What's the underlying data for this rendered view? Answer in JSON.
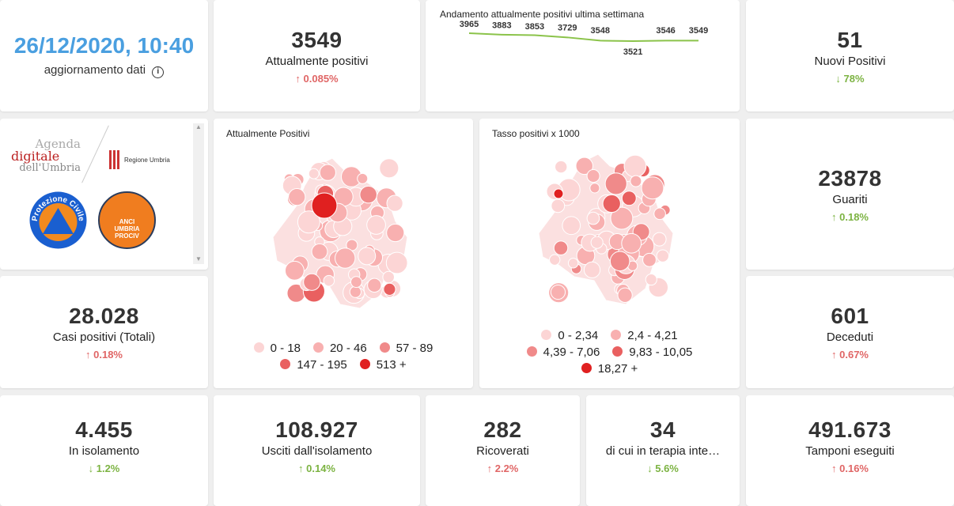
{
  "header": {
    "date": "26/12/2020, 10:40",
    "date_label": "aggiornamento dati",
    "info_icon": "info-icon"
  },
  "attualmente_positivi": {
    "value": "3549",
    "label": "Attualmente positivi",
    "delta": "0.085%",
    "dir": "up"
  },
  "trend": {
    "title": "Andamento attualmente positivi ultima settimana",
    "values": [
      3965,
      3883,
      3853,
      3729,
      3548,
      3521,
      3546,
      3549
    ],
    "labels": [
      "3965",
      "3883",
      "3853",
      "3729",
      "3548",
      "3521",
      "3546",
      "3549"
    ],
    "color": "#8bc34a"
  },
  "nuovi_positivi": {
    "value": "51",
    "label": "Nuovi Positivi",
    "delta": "78%",
    "dir": "down"
  },
  "logos": {
    "agenda1": "Agenda",
    "agenda2": "digitale",
    "agenda3": "dell'Umbria",
    "regione": "Regione Umbria",
    "protezione": "Protezione Civile",
    "anci": "ANCI UMBRIA PROCIV"
  },
  "map1": {
    "title": "Attualmente Positivi",
    "legend": [
      {
        "label": "0 - 18",
        "color": "#fcd5d5"
      },
      {
        "label": "20 - 46",
        "color": "#f8b0b0"
      },
      {
        "label": "57 - 89",
        "color": "#f08a8a"
      },
      {
        "label": "147 - 195",
        "color": "#e96060"
      },
      {
        "label": "513 +",
        "color": "#e02020"
      }
    ]
  },
  "map2": {
    "title": "Tasso positivi x 1000",
    "legend": [
      {
        "label": "0 - 2,34",
        "color": "#fcd5d5"
      },
      {
        "label": "2,4 - 4,21",
        "color": "#f8b0b0"
      },
      {
        "label": "4,39 - 7,06",
        "color": "#f08a8a"
      },
      {
        "label": "9,83 - 10,05",
        "color": "#e96060"
      },
      {
        "label": "18,27 +",
        "color": "#e02020"
      }
    ]
  },
  "guariti": {
    "value": "23878",
    "label": "Guariti",
    "delta": "0.18%",
    "dir": "up-green"
  },
  "casi": {
    "value": "28.028",
    "label": "Casi positivi (Totali)",
    "delta": "0.18%",
    "dir": "up"
  },
  "deceduti": {
    "value": "601",
    "label": "Deceduti",
    "delta": "0.67%",
    "dir": "up"
  },
  "bottom": [
    {
      "value": "4.455",
      "label": "In isolamento",
      "delta": "1.2%",
      "dir": "down"
    },
    {
      "value": "108.927",
      "label": "Usciti dall'isolamento",
      "delta": "0.14%",
      "dir": "up-green"
    },
    {
      "value": "282",
      "label": "Ricoverati",
      "delta": "2.2%",
      "dir": "up"
    },
    {
      "value": "34",
      "label": "di cui in terapia inte…",
      "delta": "5.6%",
      "dir": "down"
    },
    {
      "value": "491.673",
      "label": "Tamponi eseguiti",
      "delta": "0.16%",
      "dir": "up"
    }
  ]
}
